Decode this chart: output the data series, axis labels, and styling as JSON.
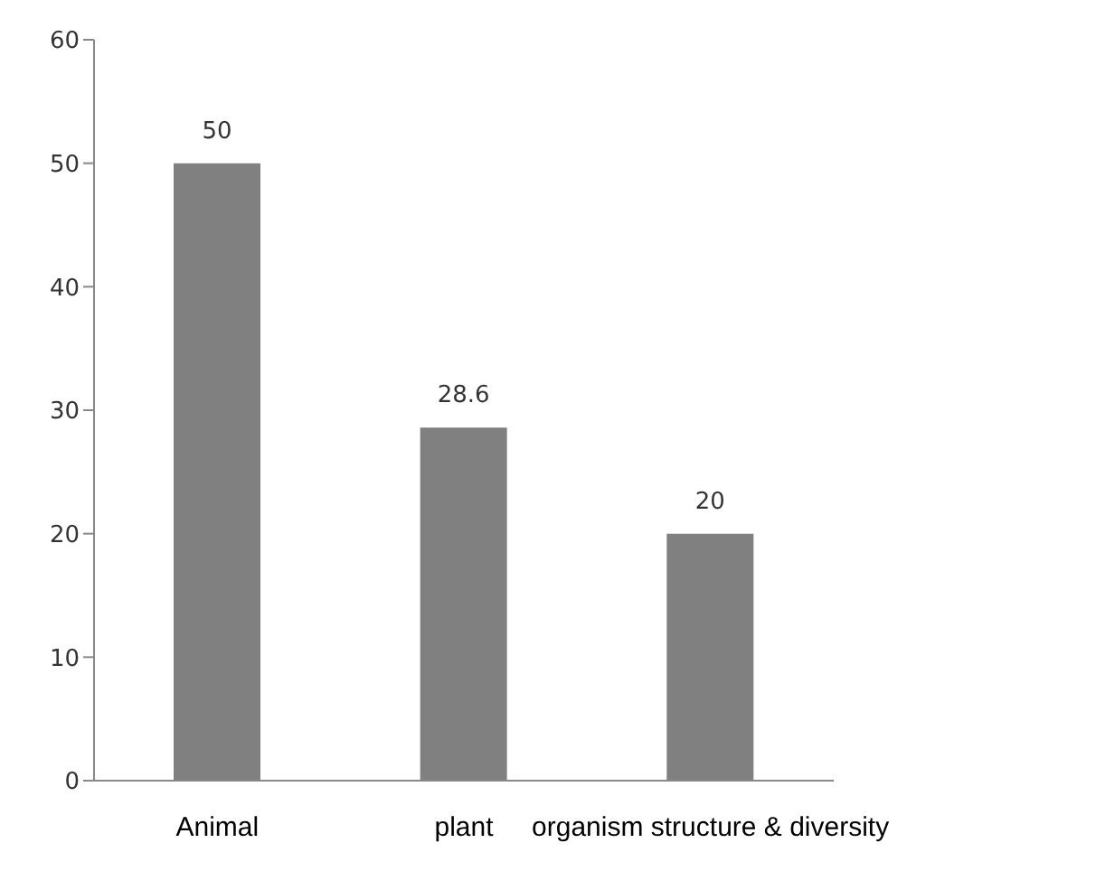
{
  "chart_data": {
    "type": "bar",
    "categories": [
      "Animal",
      "plant",
      "organism structure & diversity"
    ],
    "values": [
      50,
      28.6,
      20
    ],
    "color": "#808080",
    "ylim": [
      0,
      60
    ],
    "yticks": [
      0,
      10,
      20,
      30,
      40,
      50,
      60
    ],
    "grid": false,
    "legend": false,
    "data_labels": true
  }
}
